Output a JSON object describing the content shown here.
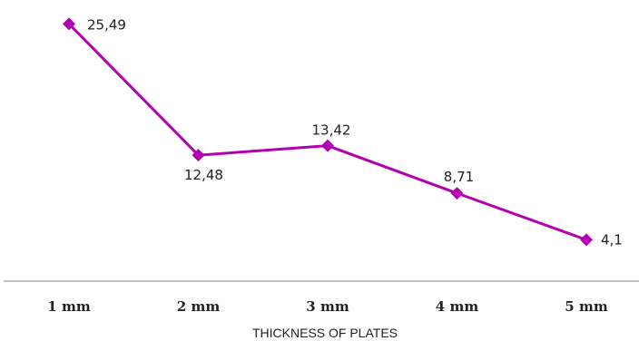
{
  "chart_data": {
    "type": "line",
    "title": "",
    "xlabel": "THICKNESS OF PLATES",
    "ylabel": "",
    "categories": [
      "1 mm",
      "2 mm",
      "3 mm",
      "4 mm",
      "5 mm"
    ],
    "series": [
      {
        "values": [
          25.49,
          12.48,
          13.42,
          8.71,
          4.1
        ],
        "labels": [
          "25,49",
          "12,48",
          "13,42",
          "8,71",
          "4,1"
        ],
        "color": "#b200b2",
        "marker": "diamond"
      }
    ],
    "ylim": [
      0,
      26.6
    ],
    "grid": false,
    "y_axis_visible": false,
    "legend": "none",
    "axis_color": "#9e9e9e"
  }
}
